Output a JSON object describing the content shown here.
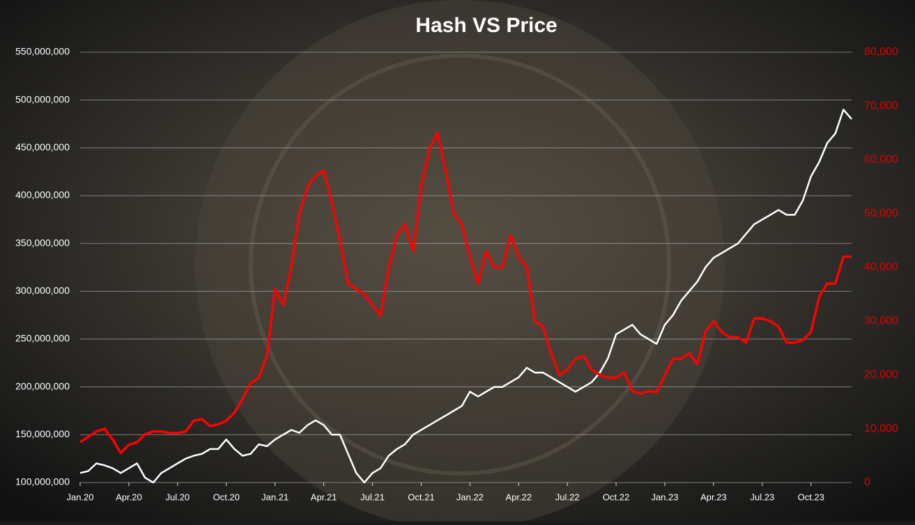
{
  "chart_data": {
    "type": "line",
    "title": "Hash VS Price",
    "categories": [
      "Jan.20",
      null,
      null,
      null,
      null,
      null,
      "Apr.20",
      null,
      null,
      null,
      null,
      null,
      "Jul.20",
      null,
      null,
      null,
      null,
      null,
      "Oct.20",
      null,
      null,
      null,
      null,
      null,
      "Jan.21",
      null,
      null,
      null,
      null,
      null,
      "Apr.21",
      null,
      null,
      null,
      null,
      null,
      "Jul.21",
      null,
      null,
      null,
      null,
      null,
      "Oct.21",
      null,
      null,
      null,
      null,
      null,
      "Jan.22",
      null,
      null,
      null,
      null,
      null,
      "Apr.22",
      null,
      null,
      null,
      null,
      null,
      "Jul.22",
      null,
      null,
      null,
      null,
      null,
      "Oct.22",
      null,
      null,
      null,
      null,
      null,
      "Jan.23",
      null,
      null,
      null,
      null,
      null,
      "Apr.23",
      null,
      null,
      null,
      null,
      null,
      "Jul.23",
      null,
      null,
      null,
      null,
      null,
      "Oct.23",
      null,
      null,
      null,
      null,
      null
    ],
    "series": [
      {
        "name": "Hash",
        "color": "#ffffff",
        "axis": "y",
        "values": [
          110000000,
          112000000,
          120000000,
          118000000,
          115000000,
          110000000,
          115000000,
          120000000,
          105000000,
          100000000,
          110000000,
          115000000,
          120000000,
          125000000,
          128000000,
          130000000,
          135000000,
          135000000,
          145000000,
          135000000,
          128000000,
          130000000,
          140000000,
          138000000,
          145000000,
          150000000,
          155000000,
          152000000,
          160000000,
          165000000,
          160000000,
          150000000,
          150000000,
          130000000,
          110000000,
          100000000,
          110000000,
          115000000,
          128000000,
          135000000,
          140000000,
          150000000,
          155000000,
          160000000,
          165000000,
          170000000,
          175000000,
          180000000,
          195000000,
          190000000,
          195000000,
          200000000,
          200000000,
          205000000,
          210000000,
          220000000,
          215000000,
          215000000,
          210000000,
          205000000,
          200000000,
          195000000,
          200000000,
          205000000,
          215000000,
          230000000,
          255000000,
          260000000,
          265000000,
          255000000,
          250000000,
          245000000,
          265000000,
          275000000,
          290000000,
          300000000,
          310000000,
          325000000,
          335000000,
          340000000,
          345000000,
          350000000,
          360000000,
          370000000,
          375000000,
          380000000,
          385000000,
          380000000,
          380000000,
          395000000,
          420000000,
          435000000,
          455000000,
          465000000,
          490000000,
          480000000
        ]
      },
      {
        "name": "Price",
        "color": "#ff0000",
        "axis": "y2",
        "values": [
          7500,
          8500,
          9500,
          10000,
          8000,
          5500,
          7000,
          7500,
          9000,
          9500,
          9500,
          9200,
          9200,
          9500,
          11500,
          11800,
          10500,
          10800,
          11500,
          13000,
          15500,
          18500,
          19500,
          23500,
          36000,
          33000,
          40000,
          50000,
          55000,
          57000,
          58000,
          52000,
          45000,
          37000,
          36000,
          35000,
          33000,
          31000,
          40000,
          46000,
          48000,
          43000,
          55000,
          62000,
          65000,
          58000,
          50000,
          48000,
          42000,
          37000,
          43000,
          40000,
          40000,
          46000,
          42000,
          40000,
          30000,
          29000,
          24000,
          20000,
          21000,
          23000,
          23500,
          21000,
          20000,
          19500,
          19500,
          20500,
          17000,
          16500,
          17000,
          16800,
          20000,
          23000,
          23000,
          24000,
          22000,
          28000,
          30000,
          28000,
          27000,
          27000,
          26000,
          30500,
          30500,
          30000,
          29000,
          26000,
          26000,
          26500,
          28000,
          34500,
          37000,
          37000,
          42000,
          42000
        ]
      }
    ],
    "ylim": [
      100000000,
      550000000
    ],
    "yticks": [
      {
        "value": 100000000,
        "label": "100,000,000"
      },
      {
        "value": 150000000,
        "label": "150,000,000"
      },
      {
        "value": 200000000,
        "label": "200,000,000"
      },
      {
        "value": 250000000,
        "label": "250,000,000"
      },
      {
        "value": 300000000,
        "label": "300,000,000"
      },
      {
        "value": 350000000,
        "label": "350,000,000"
      },
      {
        "value": 400000000,
        "label": "400,000,000"
      },
      {
        "value": 450000000,
        "label": "450,000,000"
      },
      {
        "value": 500000000,
        "label": "500,000,000"
      },
      {
        "value": 550000000,
        "label": "550,000,000"
      }
    ],
    "y2lim": [
      0,
      80000
    ],
    "y2ticks": [
      0,
      {
        "value": 10000,
        "label": "10,000"
      },
      {
        "value": 20000,
        "label": "20,000"
      },
      {
        "value": 30000,
        "label": "30,000"
      },
      {
        "value": 40000,
        "label": "40,000"
      },
      {
        "value": 50000,
        "label": "50,000"
      },
      {
        "value": 60000,
        "label": "60,000"
      },
      {
        "value": 70000,
        "label": "70,000"
      },
      {
        "value": 80000,
        "label": "80,000"
      }
    ],
    "grid": true
  }
}
